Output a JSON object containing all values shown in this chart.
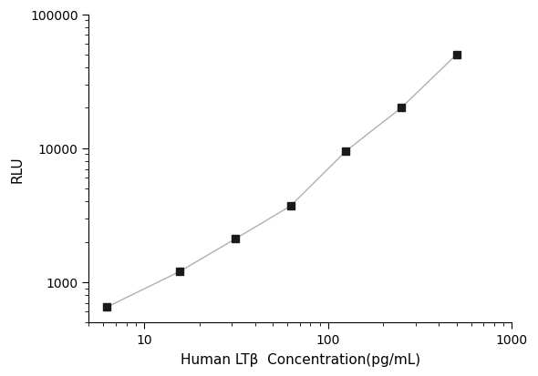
{
  "x": [
    6.25,
    15.6,
    31.25,
    62.5,
    125,
    250,
    500
  ],
  "y": [
    650,
    1200,
    2100,
    3700,
    9500,
    20000,
    50000
  ],
  "xlabel": "Human LTβ  Concentration(pg/mL)",
  "ylabel": "RLU",
  "xlim": [
    5,
    1000
  ],
  "ylim": [
    500,
    100000
  ],
  "xticks": [
    10,
    100,
    1000
  ],
  "yticks": [
    1000,
    10000,
    100000
  ],
  "xtick_labels": [
    "10",
    "100",
    "1000"
  ],
  "ytick_labels": [
    "1000",
    "10000",
    "100000"
  ],
  "line_color": "#b0b0b0",
  "marker_color": "#1a1a1a",
  "marker": "s",
  "marker_size": 6,
  "line_width": 1.0,
  "background_color": "#ffffff",
  "figsize": [
    5.9,
    4.14
  ],
  "dpi": 100
}
